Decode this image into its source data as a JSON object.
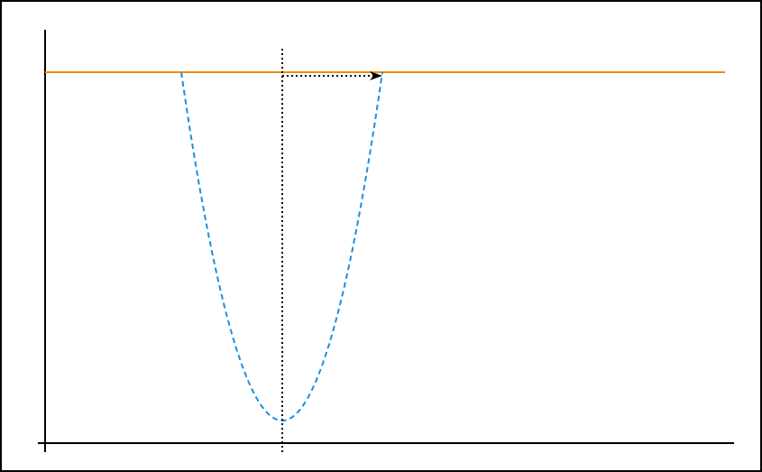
{
  "colors": {
    "frame": "#000000",
    "axes": "#000000",
    "horizontal_line": "#f28c00",
    "parabola": "#1a8fe0",
    "guide": "#000000",
    "background": "#ffffff"
  },
  "diagram": {
    "type": "potential-well sketch",
    "elements": [
      "frame",
      "y-axis",
      "x-axis",
      "horizontal-level-line",
      "dashed-parabola",
      "vertical-dotted-line-at-minimum",
      "dotted-arrow-from-center-to-right-intersection"
    ],
    "parabola_style": "dashed",
    "guide_style": "dotted",
    "arrow_direction": "right",
    "labels": []
  }
}
